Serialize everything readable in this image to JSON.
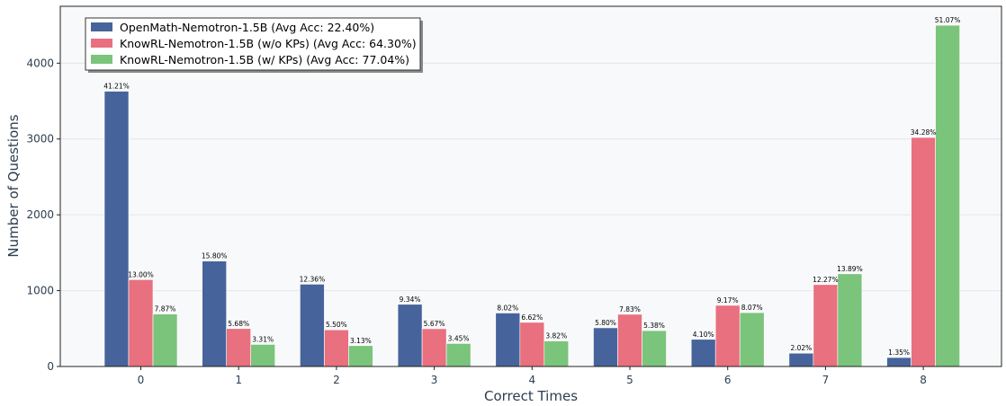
{
  "chart_data": {
    "type": "bar",
    "title": "",
    "xlabel": "Correct Times",
    "ylabel": "Number of Questions",
    "categories": [
      "0",
      "1",
      "2",
      "3",
      "4",
      "5",
      "6",
      "7",
      "8"
    ],
    "ylim": [
      0,
      4750
    ],
    "yticks": [
      0,
      1000,
      2000,
      3000,
      4000
    ],
    "grid": true,
    "legend_position": "top-left",
    "series": [
      {
        "name": "OpenMath-Nemotron-1.5B (Avg Acc: 22.40%)",
        "color": "#46649b",
        "values": [
          3630,
          1390,
          1085,
          820,
          705,
          510,
          358,
          175,
          118
        ],
        "labels": [
          "41.21%",
          "15.80%",
          "12.36%",
          "9.34%",
          "8.02%",
          "5.80%",
          "4.10%",
          "2.02%",
          "1.35%"
        ]
      },
      {
        "name": "KnowRL-Nemotron-1.5B (w/o KPs) (Avg Acc: 64.30%)",
        "color": "#e8707f",
        "values": [
          1145,
          500,
          483,
          498,
          582,
          688,
          806,
          1080,
          3020
        ],
        "labels": [
          "13.00%",
          "5.68%",
          "5.50%",
          "5.67%",
          "6.62%",
          "7.83%",
          "9.17%",
          "12.27%",
          "34.28%"
        ]
      },
      {
        "name": "KnowRL-Nemotron-1.5B (w/ KPs) (Avg Acc: 77.04%)",
        "color": "#7bc47b",
        "values": [
          692,
          291,
          275,
          303,
          336,
          473,
          710,
          1222,
          4500
        ],
        "labels": [
          "7.87%",
          "3.31%",
          "3.13%",
          "3.45%",
          "3.82%",
          "5.38%",
          "8.07%",
          "13.89%",
          "51.07%"
        ]
      }
    ]
  }
}
